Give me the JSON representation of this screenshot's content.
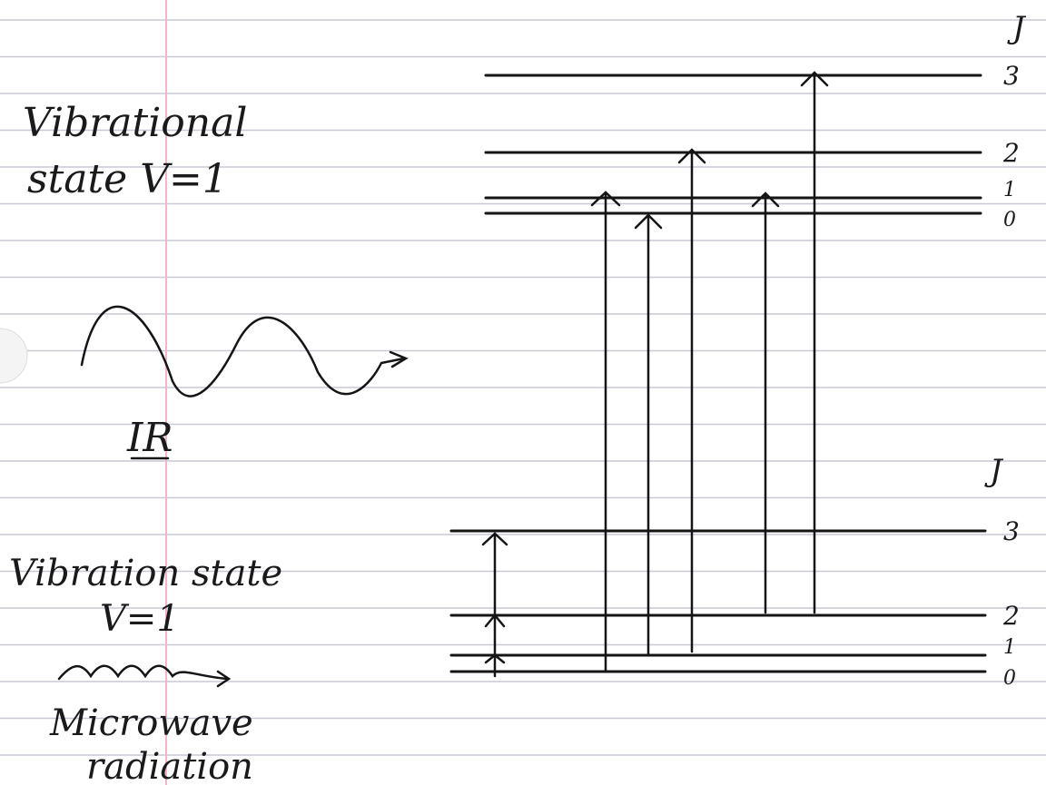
{
  "upper_state": {
    "lines": [
      "Vibrational",
      "state V=1"
    ]
  },
  "ir_label": "IR",
  "lower_state": {
    "lines": [
      "Vibration state",
      "V=1"
    ]
  },
  "microwave_label": {
    "lines": [
      "Microwave",
      "radiation"
    ]
  },
  "upper_levels": {
    "axis_label": "J",
    "levels": [
      "3",
      "2",
      "1",
      "0"
    ]
  },
  "lower_levels": {
    "axis_label": "J",
    "levels": [
      "3",
      "2",
      "1",
      "0"
    ]
  }
}
